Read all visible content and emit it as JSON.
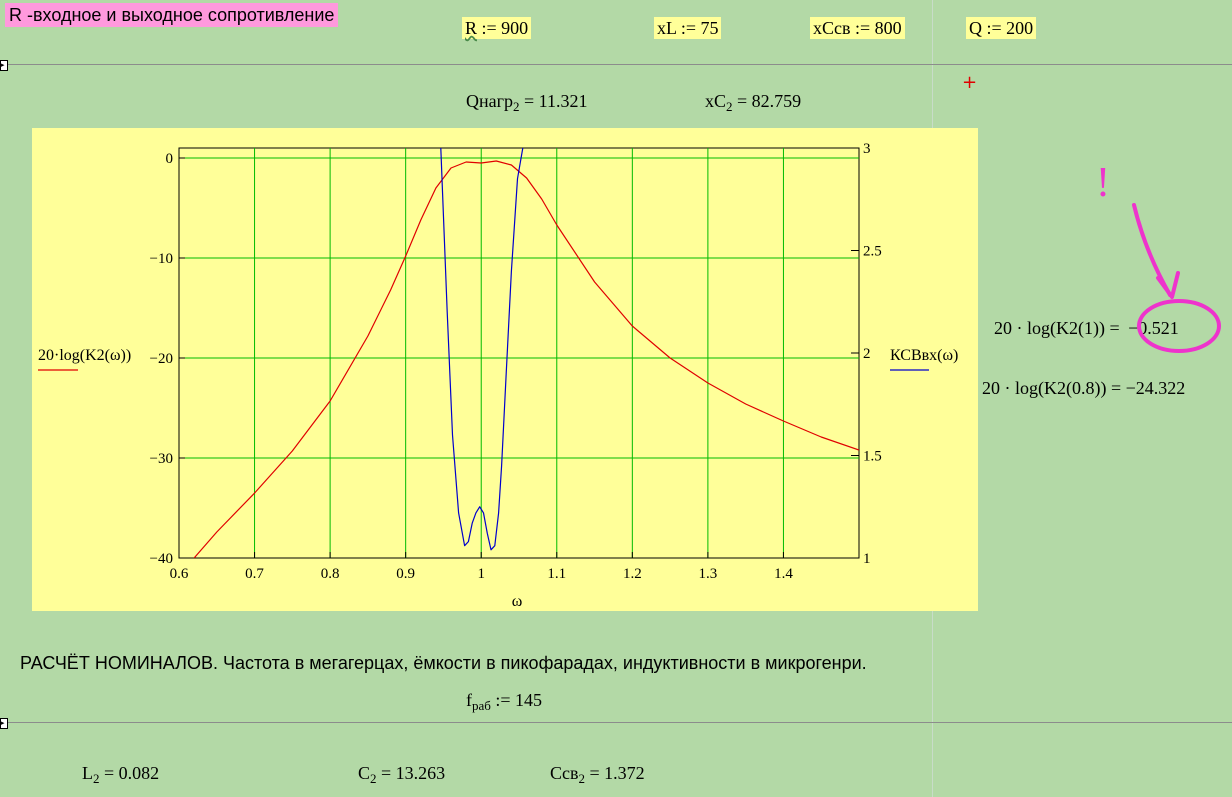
{
  "header": {
    "title": "R -входное и выходное сопротивление",
    "vars": [
      {
        "name": "R",
        "op": ":=",
        "value": "900"
      },
      {
        "name": "xL",
        "op": ":=",
        "value": "75"
      },
      {
        "name": "xCсв",
        "op": ":=",
        "value": "800"
      },
      {
        "name": "Q",
        "op": ":=",
        "value": "200"
      }
    ]
  },
  "results": {
    "qnagr_label": "Qнагр",
    "qnagr_sub": "2",
    "qnagr_value": "= 11.321",
    "xc_label": "xC",
    "xc_sub": "2",
    "xc_value": "= 82.759"
  },
  "side": {
    "expr1": "20 · log(K2(1)) =",
    "val1": "−0.521",
    "expr2": "20 · log(K2(0.8)) = −24.322",
    "annotation": "!"
  },
  "chart_data": {
    "type": "line",
    "xlabel": "ω",
    "xlim": [
      0.6,
      1.5
    ],
    "y_left_label": "20·log(K2(ω))",
    "y_right_label": "КСВвх(ω)",
    "ylim_left": [
      -40,
      1
    ],
    "ylim_right": [
      1,
      3
    ],
    "x_ticks": [
      "0.6",
      "0.7",
      "0.8",
      "0.9",
      "1",
      "1.1",
      "1.2",
      "1.3",
      "1.4"
    ],
    "y_left_ticks": [
      "0",
      "−10",
      "−20",
      "−30",
      "−40"
    ],
    "y_right_ticks": [
      "3",
      "2.5",
      "2",
      "1.5",
      "1"
    ],
    "grid": true,
    "series": [
      {
        "name": "20·log(K2(ω))",
        "axis": "left",
        "color": "#e00000",
        "x": [
          0.62,
          0.65,
          0.7,
          0.75,
          0.8,
          0.85,
          0.88,
          0.9,
          0.92,
          0.94,
          0.96,
          0.98,
          1.0,
          1.02,
          1.04,
          1.06,
          1.08,
          1.1,
          1.15,
          1.2,
          1.25,
          1.3,
          1.35,
          1.4,
          1.45,
          1.5
        ],
        "y": [
          -40,
          -37.4,
          -33.5,
          -29.3,
          -24.3,
          -17.8,
          -13.2,
          -9.8,
          -6.2,
          -3.0,
          -1.0,
          -0.4,
          -0.5,
          -0.3,
          -0.7,
          -2.0,
          -4.1,
          -6.7,
          -12.4,
          -16.8,
          -20.0,
          -22.5,
          -24.6,
          -26.3,
          -27.9,
          -29.2
        ]
      },
      {
        "name": "КСВвх(ω)",
        "axis": "right",
        "color": "#0000cc",
        "x": [
          0.9465,
          0.955,
          0.962,
          0.97,
          0.978,
          0.983,
          0.988,
          0.993,
          0.998,
          1.003,
          1.008,
          1.013,
          1.018,
          1.023,
          1.027,
          1.033,
          1.04,
          1.048,
          1.055
        ],
        "y": [
          3.0,
          2.2,
          1.6,
          1.22,
          1.06,
          1.08,
          1.17,
          1.22,
          1.25,
          1.22,
          1.12,
          1.04,
          1.06,
          1.22,
          1.45,
          1.9,
          2.4,
          2.85,
          3.0
        ]
      }
    ]
  },
  "section": {
    "heading": "РАСЧЁТ НОМИНАЛОВ. Частота в мегагерцах, ёмкости в пикофарадах, индуктивности в микрогенри.",
    "f_label": "f",
    "f_sub": "раб",
    "f_value": ":= 145"
  },
  "values": {
    "l_label": "L",
    "l_sub": "2",
    "l_value": "= 0.082",
    "c_label": "C",
    "c_sub": "2",
    "c_value": "= 13.263",
    "csv_label": "Cсв",
    "csv_sub": "2",
    "csv_value": "= 1.372"
  }
}
